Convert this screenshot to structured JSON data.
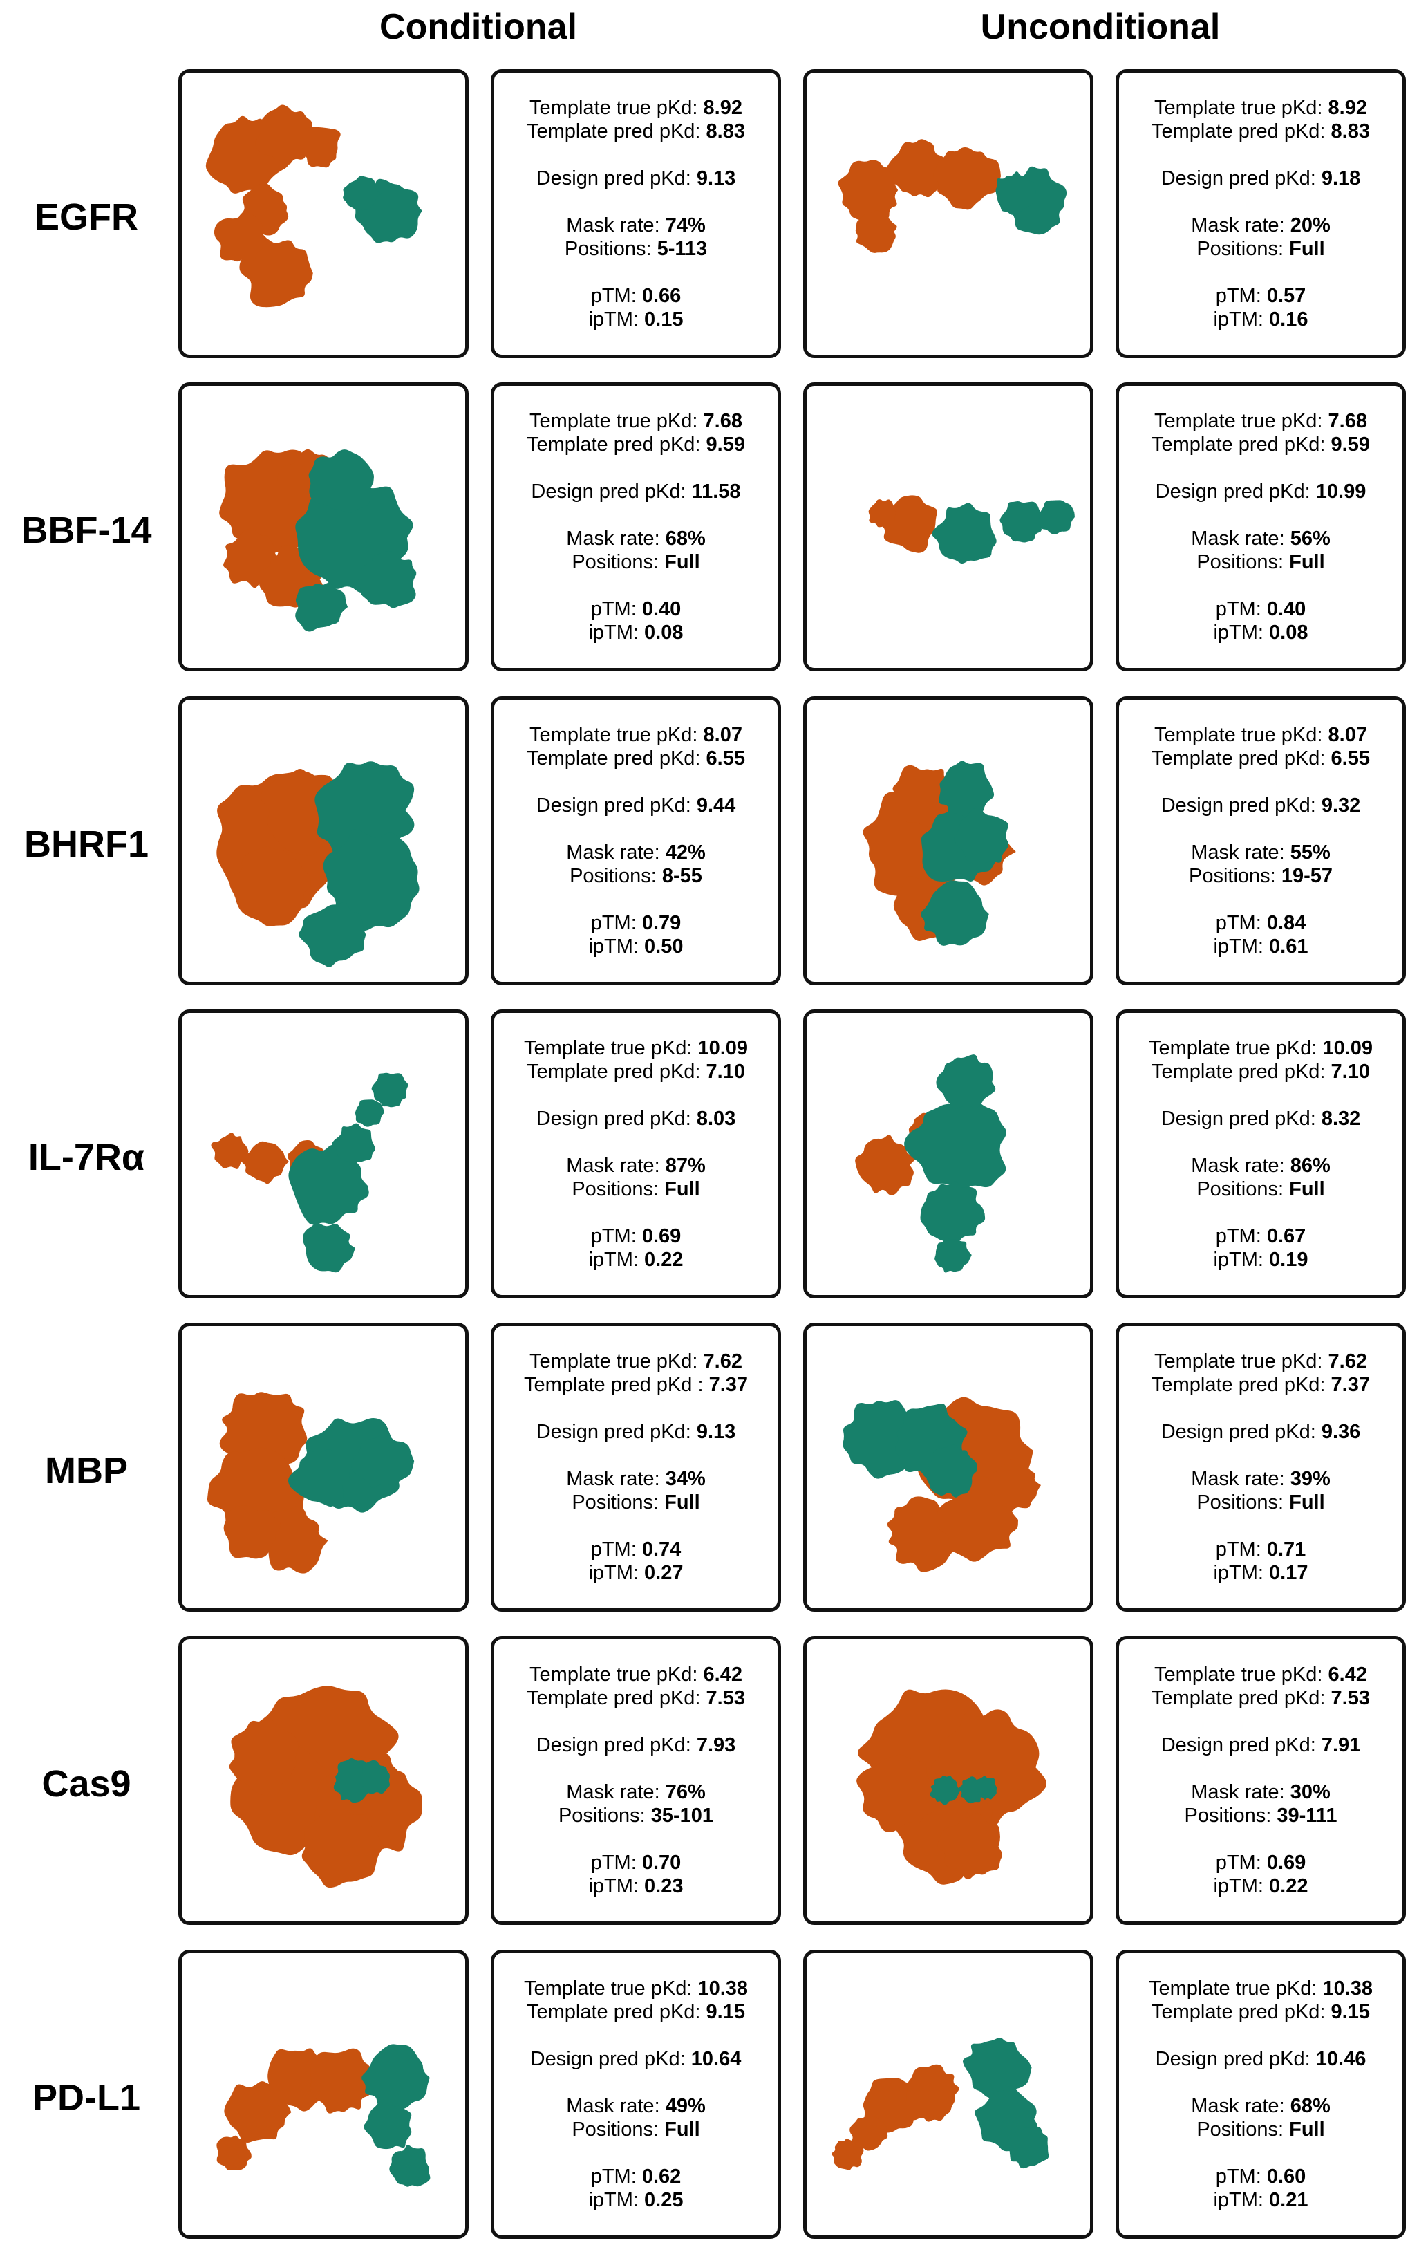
{
  "headers": {
    "conditional": "Conditional",
    "unconditional": "Unconditional"
  },
  "labels": {
    "template_true": "Template true pKd: ",
    "template_pred": "Template pred pKd: ",
    "template_pred_alt": "Template pred pKd : ",
    "design_pred": "Design pred pKd: ",
    "mask_rate": "Mask rate: ",
    "positions": "Positions: ",
    "ptm": "pTM: ",
    "iptm": "ipTM: "
  },
  "colors": {
    "target": "#c8520f",
    "binder": "#17806a",
    "border": "#111111"
  },
  "rows": [
    {
      "name": "EGFR",
      "conditional": {
        "template_true": "8.92",
        "template_pred": "8.83",
        "design_pred": "9.13",
        "mask_rate": "74%",
        "positions": "5-113",
        "ptm": "0.66",
        "iptm": "0.15"
      },
      "unconditional": {
        "template_true": "8.92",
        "template_pred": "8.83",
        "design_pred": "9.18",
        "mask_rate": "20%",
        "positions": "Full",
        "ptm": "0.57",
        "iptm": "0.16"
      }
    },
    {
      "name": "BBF-14",
      "conditional": {
        "template_true": "7.68",
        "template_pred": "9.59",
        "design_pred": "11.58",
        "mask_rate": "68%",
        "positions": "Full",
        "ptm": "0.40",
        "iptm": "0.08"
      },
      "unconditional": {
        "template_true": "7.68",
        "template_pred": "9.59",
        "design_pred": "10.99",
        "mask_rate": "56%",
        "positions": "Full",
        "ptm": "0.40",
        "iptm": "0.08"
      }
    },
    {
      "name": "BHRF1",
      "conditional": {
        "template_true": "8.07",
        "template_pred": "6.55",
        "design_pred": "9.44",
        "mask_rate": "42%",
        "positions": "8-55",
        "ptm": "0.79",
        "iptm": "0.50"
      },
      "unconditional": {
        "template_true": "8.07",
        "template_pred": "6.55",
        "design_pred": "9.32",
        "mask_rate": "55%",
        "positions": "19-57",
        "ptm": "0.84",
        "iptm": "0.61"
      }
    },
    {
      "name": "IL-7Rα",
      "conditional": {
        "template_true": "10.09",
        "template_pred": "7.10",
        "design_pred": "8.03",
        "mask_rate": "87%",
        "positions": "Full",
        "ptm": "0.69",
        "iptm": "0.22"
      },
      "unconditional": {
        "template_true": "10.09",
        "template_pred": "7.10",
        "design_pred": "8.32",
        "mask_rate": "86%",
        "positions": "Full",
        "ptm": "0.67",
        "iptm": "0.19"
      }
    },
    {
      "name": "MBP",
      "conditional": {
        "template_true": "7.62",
        "template_pred": "7.37",
        "design_pred": "9.13",
        "mask_rate": "34%",
        "positions": "Full",
        "ptm": "0.74",
        "iptm": "0.27",
        "alt_pred_label": true
      },
      "unconditional": {
        "template_true": "7.62",
        "template_pred": "7.37",
        "design_pred": "9.36",
        "mask_rate": "39%",
        "positions": "Full",
        "ptm": "0.71",
        "iptm": "0.17"
      }
    },
    {
      "name": "Cas9",
      "conditional": {
        "template_true": "6.42",
        "template_pred": "7.53",
        "design_pred": "7.93",
        "mask_rate": "76%",
        "positions": "35-101",
        "ptm": "0.70",
        "iptm": "0.23"
      },
      "unconditional": {
        "template_true": "6.42",
        "template_pred": "7.53",
        "design_pred": "7.91",
        "mask_rate": "30%",
        "positions": "39-111",
        "ptm": "0.69",
        "iptm": "0.22"
      }
    },
    {
      "name": "PD-L1",
      "conditional": {
        "template_true": "10.38",
        "template_pred": "9.15",
        "design_pred": "10.64",
        "mask_rate": "49%",
        "positions": "Full",
        "ptm": "0.62",
        "iptm": "0.25"
      },
      "unconditional": {
        "template_true": "10.38",
        "template_pred": "9.15",
        "design_pred": "10.46",
        "mask_rate": "68%",
        "positions": "Full",
        "ptm": "0.60",
        "iptm": "0.21"
      }
    }
  ]
}
